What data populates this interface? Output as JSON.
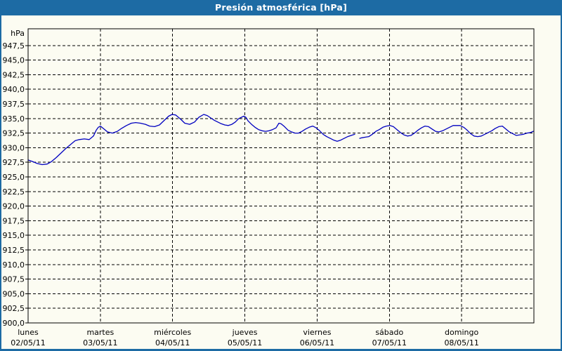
{
  "window": {
    "title": "Presión atmosférica [hPa]"
  },
  "colors": {
    "accent_blue": "#1d6ba4",
    "title_text": "#ffffff",
    "background": "#fcfcf2",
    "axis": "#000000",
    "grid": "#000000",
    "line": "#0000c0",
    "text": "#000000"
  },
  "chart_data": {
    "type": "line",
    "title": "Presión atmosférica [hPa]",
    "ylabel": "hPa",
    "xlabel": "",
    "grid": "dashed",
    "legend": "none",
    "y_axis": {
      "unit": "hPa",
      "min": 900.0,
      "max": 950.4,
      "tick_step": 2.5,
      "first_tick": 900.0,
      "last_tick": 947.5,
      "tick_labels": [
        "947,5",
        "945,0",
        "942,5",
        "940,0",
        "937,5",
        "935,0",
        "932,5",
        "930,0",
        "927,5",
        "925,0",
        "922,5",
        "920,0",
        "917,5",
        "915,0",
        "912,5",
        "910,0",
        "907,5",
        "905,0",
        "902,5",
        "900,0"
      ]
    },
    "x_axis": {
      "span_days": 7,
      "days": [
        {
          "name": "lunes",
          "date": "02/05/11"
        },
        {
          "name": "martes",
          "date": "03/05/11"
        },
        {
          "name": "miércoles",
          "date": "04/05/11"
        },
        {
          "name": "jueves",
          "date": "05/05/11"
        },
        {
          "name": "viernes",
          "date": "06/05/11"
        },
        {
          "name": "sábado",
          "date": "07/05/11"
        },
        {
          "name": "domingo",
          "date": "08/05/11"
        }
      ]
    },
    "series": [
      {
        "name": "Presión atmosférica",
        "unit": "hPa",
        "color": "#0000c0",
        "segments": [
          [
            [
              0.0,
              927.9
            ],
            [
              0.068,
              927.6
            ],
            [
              0.126,
              927.3
            ],
            [
              0.194,
              927.1
            ],
            [
              0.263,
              927.2
            ],
            [
              0.321,
              927.6
            ],
            [
              0.389,
              928.3
            ],
            [
              0.457,
              929.1
            ],
            [
              0.515,
              929.8
            ],
            [
              0.583,
              930.5
            ],
            [
              0.651,
              931.2
            ],
            [
              0.71,
              931.4
            ],
            [
              0.778,
              931.5
            ],
            [
              0.846,
              931.4
            ],
            [
              0.904,
              932.0
            ],
            [
              0.943,
              933.0
            ],
            [
              0.972,
              933.5
            ],
            [
              1.001,
              933.7
            ],
            [
              1.05,
              933.2
            ],
            [
              1.099,
              932.7
            ],
            [
              1.167,
              932.5
            ],
            [
              1.235,
              932.8
            ],
            [
              1.293,
              933.3
            ],
            [
              1.361,
              933.8
            ],
            [
              1.429,
              934.2
            ],
            [
              1.488,
              934.3
            ],
            [
              1.556,
              934.2
            ],
            [
              1.624,
              934.0
            ],
            [
              1.682,
              933.7
            ],
            [
              1.75,
              933.6
            ],
            [
              1.818,
              933.9
            ],
            [
              1.877,
              934.6
            ],
            [
              1.944,
              935.4
            ],
            [
              1.993,
              935.7
            ],
            [
              2.042,
              935.6
            ],
            [
              2.11,
              934.9
            ],
            [
              2.168,
              934.2
            ],
            [
              2.236,
              934.0
            ],
            [
              2.304,
              934.4
            ],
            [
              2.363,
              935.2
            ],
            [
              2.431,
              935.7
            ],
            [
              2.479,
              935.5
            ],
            [
              2.528,
              935.1
            ],
            [
              2.576,
              934.7
            ],
            [
              2.625,
              934.4
            ],
            [
              2.674,
              934.1
            ],
            [
              2.722,
              933.9
            ],
            [
              2.771,
              933.8
            ],
            [
              2.82,
              934.0
            ],
            [
              2.868,
              934.4
            ],
            [
              2.917,
              935.0
            ],
            [
              2.985,
              935.4
            ],
            [
              3.014,
              935.2
            ],
            [
              3.043,
              934.6
            ],
            [
              3.092,
              934.0
            ],
            [
              3.14,
              933.5
            ],
            [
              3.189,
              933.1
            ],
            [
              3.238,
              932.9
            ],
            [
              3.286,
              932.8
            ],
            [
              3.335,
              932.9
            ],
            [
              3.383,
              933.1
            ],
            [
              3.432,
              933.4
            ],
            [
              3.471,
              934.2
            ],
            [
              3.5,
              934.1
            ],
            [
              3.549,
              933.6
            ],
            [
              3.597,
              933.0
            ],
            [
              3.646,
              932.7
            ],
            [
              3.694,
              932.5
            ],
            [
              3.743,
              932.5
            ],
            [
              3.792,
              932.8
            ],
            [
              3.84,
              933.2
            ],
            [
              3.889,
              933.5
            ],
            [
              3.938,
              933.7
            ],
            [
              3.986,
              933.4
            ],
            [
              4.035,
              932.9
            ],
            [
              4.083,
              932.3
            ],
            [
              4.132,
              931.9
            ],
            [
              4.181,
              931.6
            ],
            [
              4.229,
              931.3
            ],
            [
              4.278,
              931.1
            ],
            [
              4.326,
              931.3
            ],
            [
              4.375,
              931.6
            ],
            [
              4.424,
              931.9
            ],
            [
              4.472,
              932.1
            ],
            [
              4.521,
              932.3
            ]
          ],
          [
            [
              4.589,
              931.6
            ],
            [
              4.618,
              931.7
            ],
            [
              4.667,
              931.8
            ],
            [
              4.715,
              931.9
            ],
            [
              4.764,
              932.3
            ],
            [
              4.813,
              932.8
            ],
            [
              4.861,
              933.1
            ],
            [
              4.91,
              933.5
            ],
            [
              4.958,
              933.7
            ],
            [
              5.007,
              933.8
            ],
            [
              5.056,
              933.6
            ],
            [
              5.104,
              933.1
            ],
            [
              5.153,
              932.6
            ],
            [
              5.201,
              932.2
            ],
            [
              5.25,
              932.0
            ],
            [
              5.299,
              932.1
            ],
            [
              5.347,
              932.5
            ],
            [
              5.396,
              933.0
            ],
            [
              5.444,
              933.4
            ],
            [
              5.493,
              933.7
            ],
            [
              5.542,
              933.6
            ],
            [
              5.59,
              933.2
            ],
            [
              5.639,
              932.8
            ],
            [
              5.688,
              932.7
            ],
            [
              5.736,
              932.9
            ],
            [
              5.785,
              933.2
            ],
            [
              5.833,
              933.5
            ],
            [
              5.882,
              933.8
            ],
            [
              5.931,
              933.8
            ],
            [
              5.979,
              933.8
            ],
            [
              6.028,
              933.5
            ],
            [
              6.076,
              933.0
            ],
            [
              6.125,
              932.4
            ],
            [
              6.174,
              932.0
            ],
            [
              6.222,
              931.9
            ],
            [
              6.271,
              932.0
            ],
            [
              6.319,
              932.3
            ],
            [
              6.368,
              932.6
            ],
            [
              6.417,
              932.9
            ],
            [
              6.465,
              933.3
            ],
            [
              6.514,
              933.6
            ],
            [
              6.563,
              933.7
            ],
            [
              6.611,
              933.2
            ],
            [
              6.66,
              932.7
            ],
            [
              6.708,
              932.4
            ],
            [
              6.757,
              932.1
            ],
            [
              6.806,
              932.2
            ],
            [
              6.854,
              932.3
            ],
            [
              6.903,
              932.5
            ],
            [
              6.951,
              932.6
            ],
            [
              6.99,
              932.8
            ]
          ]
        ]
      }
    ]
  }
}
